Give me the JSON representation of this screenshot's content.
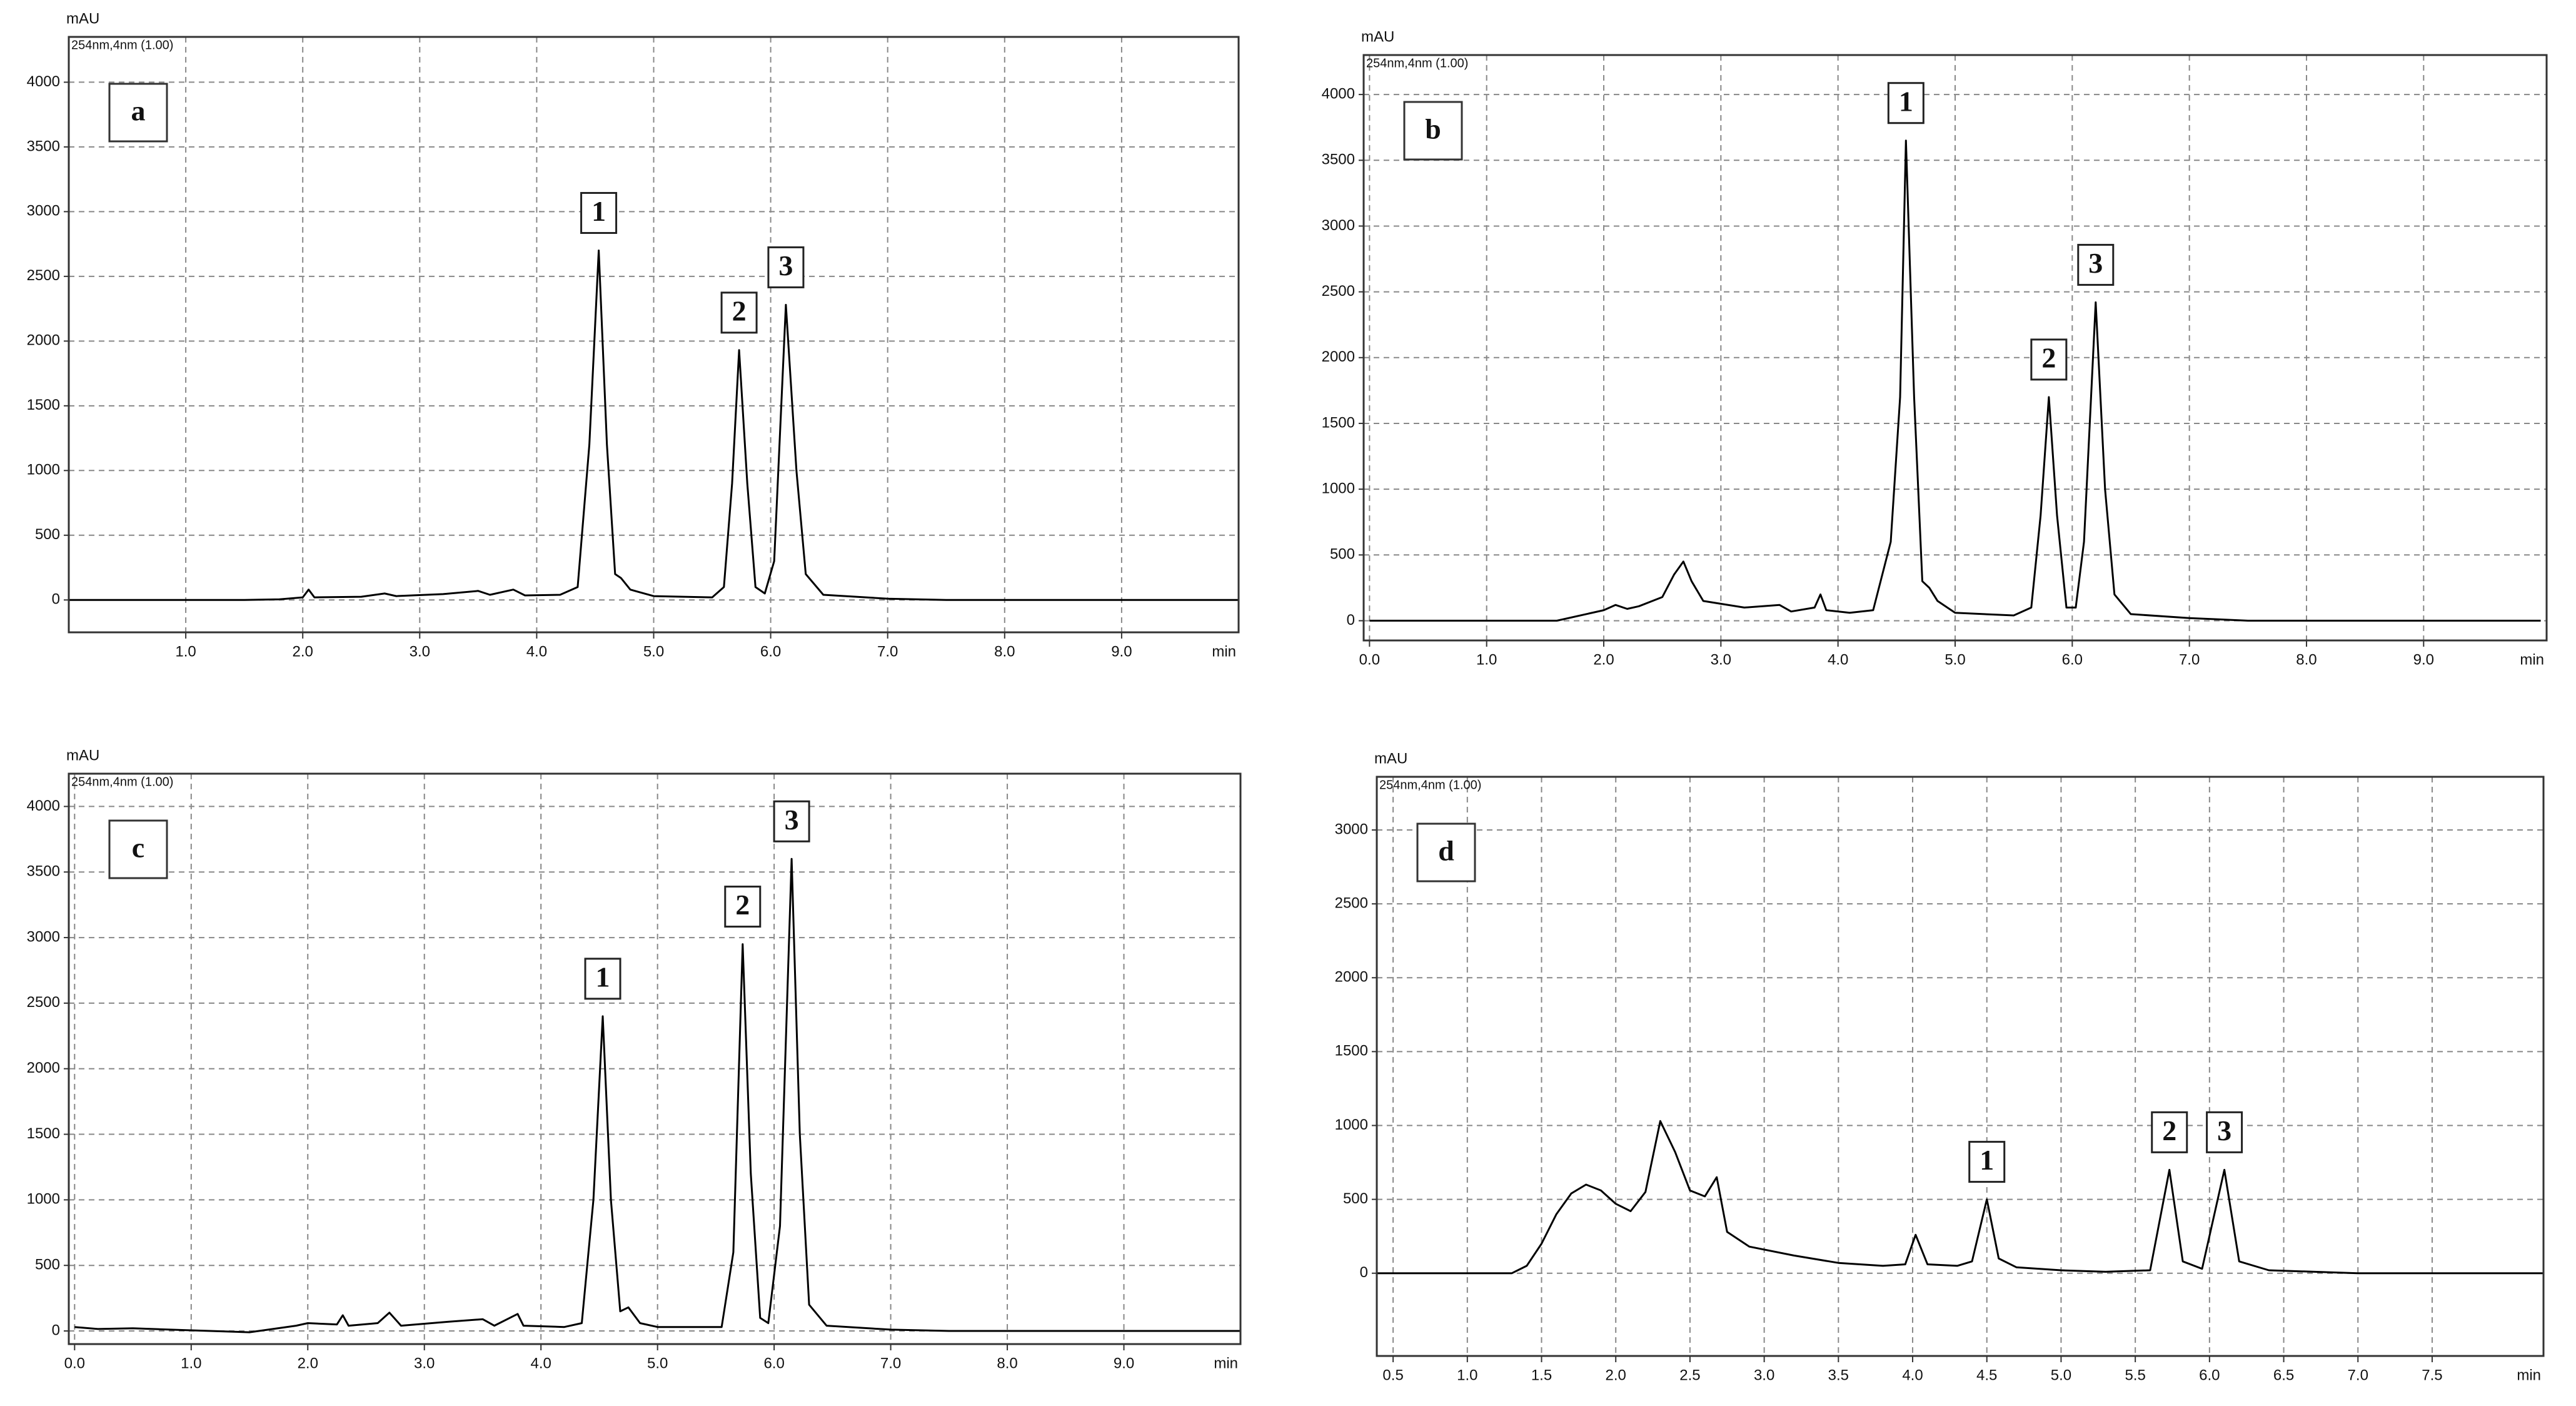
{
  "chart_data": [
    {
      "type": "line",
      "label": "a",
      "y_label": "mAU",
      "channel": "254nm,4nm (1.00)",
      "x_label": "min",
      "grid": true,
      "x": [
        0,
        1.5,
        1.8,
        2.0,
        2.05,
        2.1,
        2.5,
        2.7,
        2.8,
        3.2,
        3.5,
        3.6,
        3.8,
        3.9,
        4.2,
        4.35,
        4.45,
        4.53,
        4.6,
        4.67,
        4.72,
        4.8,
        5.0,
        5.5,
        5.6,
        5.67,
        5.73,
        5.8,
        5.87,
        5.95,
        6.03,
        6.13,
        6.22,
        6.3,
        6.45,
        7.0,
        7.5,
        10
      ],
      "series": [
        {
          "color": "#000000",
          "values": [
            0,
            0,
            5,
            20,
            80,
            20,
            25,
            50,
            30,
            45,
            70,
            40,
            80,
            35,
            40,
            100,
            1200,
            2700,
            1200,
            200,
            170,
            80,
            30,
            20,
            100,
            900,
            1930,
            900,
            100,
            50,
            300,
            2280,
            1000,
            200,
            40,
            10,
            0,
            0
          ]
        }
      ],
      "xlim": [
        0,
        10
      ],
      "ylim": [
        -250,
        4350
      ],
      "xticks": [
        {
          "value": 1,
          "label": "1.0"
        },
        {
          "value": 2,
          "label": "2.0"
        },
        {
          "value": 3,
          "label": "3.0"
        },
        {
          "value": 4,
          "label": "4.0"
        },
        {
          "value": 5,
          "label": "5.0"
        },
        {
          "value": 6,
          "label": "6.0"
        },
        {
          "value": 7,
          "label": "7.0"
        },
        {
          "value": 8,
          "label": "8.0"
        },
        {
          "value": 9,
          "label": "9.0"
        }
      ],
      "yticks": [
        0,
        500,
        1000,
        1500,
        2000,
        2500,
        3000,
        3500,
        4000
      ],
      "annotations": [
        {
          "text": "1",
          "x": 4.53,
          "y": 2700
        },
        {
          "text": "2",
          "x": 5.73,
          "y": 1930
        },
        {
          "text": "3",
          "x": 6.13,
          "y": 2280
        }
      ]
    },
    {
      "type": "line",
      "label": "b",
      "y_label": "mAU",
      "channel": "254nm,4nm (1.00)",
      "x_label": "min",
      "grid": true,
      "x": [
        0,
        1.6,
        2.0,
        2.1,
        2.2,
        2.3,
        2.5,
        2.6,
        2.68,
        2.75,
        2.85,
        3.2,
        3.5,
        3.6,
        3.8,
        3.85,
        3.9,
        4.1,
        4.3,
        4.45,
        4.53,
        4.58,
        4.65,
        4.72,
        4.78,
        4.85,
        5.0,
        5.5,
        5.65,
        5.73,
        5.8,
        5.87,
        5.95,
        6.03,
        6.1,
        6.2,
        6.28,
        6.36,
        6.5,
        7.0,
        7.5,
        10
      ],
      "series": [
        {
          "color": "#000000",
          "values": [
            0,
            0,
            80,
            120,
            90,
            110,
            180,
            350,
            450,
            300,
            150,
            100,
            120,
            70,
            100,
            200,
            80,
            60,
            80,
            600,
            1700,
            3650,
            1700,
            300,
            250,
            150,
            60,
            40,
            100,
            800,
            1700,
            800,
            100,
            100,
            600,
            2420,
            1000,
            200,
            50,
            20,
            0,
            0
          ]
        }
      ],
      "xlim": [
        -0.05,
        10.05
      ],
      "ylim": [
        -150,
        4300
      ],
      "xticks": [
        {
          "value": 0,
          "label": "0.0"
        },
        {
          "value": 1,
          "label": "1.0"
        },
        {
          "value": 2,
          "label": "2.0"
        },
        {
          "value": 3,
          "label": "3.0"
        },
        {
          "value": 4,
          "label": "4.0"
        },
        {
          "value": 5,
          "label": "5.0"
        },
        {
          "value": 6,
          "label": "6.0"
        },
        {
          "value": 7,
          "label": "7.0"
        },
        {
          "value": 8,
          "label": "8.0"
        },
        {
          "value": 9,
          "label": "9.0"
        }
      ],
      "yticks": [
        0,
        500,
        1000,
        1500,
        2000,
        2500,
        3000,
        3500,
        4000
      ],
      "annotations": [
        {
          "text": "1",
          "x": 4.58,
          "y": 3650
        },
        {
          "text": "2",
          "x": 5.8,
          "y": 1700
        },
        {
          "text": "3",
          "x": 6.2,
          "y": 2420
        }
      ]
    },
    {
      "type": "line",
      "label": "c",
      "y_label": "mAU",
      "channel": "254nm,4nm (1.00)",
      "x_label": "min",
      "grid": true,
      "x": [
        0,
        0.2,
        0.5,
        1.0,
        1.5,
        1.9,
        2.0,
        2.25,
        2.3,
        2.35,
        2.6,
        2.7,
        2.8,
        3.2,
        3.5,
        3.6,
        3.8,
        3.85,
        4.2,
        4.35,
        4.45,
        4.53,
        4.6,
        4.68,
        4.75,
        4.85,
        5.0,
        5.55,
        5.65,
        5.73,
        5.8,
        5.88,
        5.95,
        6.05,
        6.15,
        6.22,
        6.3,
        6.45,
        7.0,
        7.5,
        10
      ],
      "series": [
        {
          "color": "#000000",
          "values": [
            30,
            15,
            20,
            5,
            -10,
            40,
            60,
            50,
            120,
            40,
            60,
            140,
            40,
            70,
            90,
            40,
            130,
            40,
            30,
            60,
            1000,
            2400,
            1000,
            150,
            180,
            60,
            30,
            30,
            600,
            2950,
            1200,
            100,
            60,
            800,
            3600,
            1500,
            200,
            40,
            10,
            0,
            0
          ]
        }
      ],
      "xlim": [
        -0.05,
        10
      ],
      "ylim": [
        -100,
        4250
      ],
      "xticks": [
        {
          "value": 0,
          "label": "0.0"
        },
        {
          "value": 1,
          "label": "1.0"
        },
        {
          "value": 2,
          "label": "2.0"
        },
        {
          "value": 3,
          "label": "3.0"
        },
        {
          "value": 4,
          "label": "4.0"
        },
        {
          "value": 5,
          "label": "5.0"
        },
        {
          "value": 6,
          "label": "6.0"
        },
        {
          "value": 7,
          "label": "7.0"
        },
        {
          "value": 8,
          "label": "8.0"
        },
        {
          "value": 9,
          "label": "9.0"
        }
      ],
      "yticks": [
        0,
        500,
        1000,
        1500,
        2000,
        2500,
        3000,
        3500,
        4000
      ],
      "annotations": [
        {
          "text": "1",
          "x": 4.53,
          "y": 2400
        },
        {
          "text": "2",
          "x": 5.73,
          "y": 2950
        },
        {
          "text": "3",
          "x": 6.15,
          "y": 3600
        }
      ]
    },
    {
      "type": "line",
      "label": "d",
      "y_label": "mAU",
      "channel": "254nm,4nm (1.00)",
      "x_label": "min",
      "grid": true,
      "x": [
        0.39,
        1.3,
        1.4,
        1.5,
        1.6,
        1.7,
        1.8,
        1.9,
        2.0,
        2.1,
        2.2,
        2.3,
        2.4,
        2.5,
        2.6,
        2.68,
        2.75,
        2.9,
        3.2,
        3.5,
        3.8,
        3.95,
        4.02,
        4.1,
        4.3,
        4.4,
        4.5,
        4.58,
        4.7,
        5.0,
        5.3,
        5.6,
        5.73,
        5.82,
        5.95,
        6.1,
        6.2,
        6.4,
        7.0,
        8.25
      ],
      "series": [
        {
          "color": "#000000",
          "values": [
            0,
            0,
            50,
            200,
            400,
            540,
            600,
            560,
            470,
            420,
            550,
            1030,
            820,
            560,
            520,
            650,
            280,
            180,
            120,
            70,
            50,
            60,
            260,
            60,
            50,
            80,
            500,
            100,
            40,
            20,
            10,
            20,
            700,
            80,
            30,
            700,
            80,
            20,
            0,
            0
          ]
        }
      ],
      "xlim": [
        0.39,
        8.25
      ],
      "ylim": [
        -560,
        3360
      ],
      "xticks": [
        0.5,
        {
          "value": 1,
          "label": "1.0"
        },
        1.5,
        {
          "value": 2,
          "label": "2.0"
        },
        2.5,
        {
          "value": 3,
          "label": "3.0"
        },
        3.5,
        {
          "value": 4,
          "label": "4.0"
        },
        4.5,
        {
          "value": 5,
          "label": "5.0"
        },
        5.5,
        {
          "value": 6,
          "label": "6.0"
        },
        6.5,
        {
          "value": 7,
          "label": "7.0"
        },
        7.5
      ],
      "yticks": [
        0,
        500,
        1000,
        1500,
        2000,
        2500,
        3000
      ],
      "annotations": [
        {
          "text": "1",
          "x": 4.5,
          "y": 500
        },
        {
          "text": "2",
          "x": 5.73,
          "y": 700
        },
        {
          "text": "3",
          "x": 6.1,
          "y": 700
        }
      ]
    }
  ]
}
